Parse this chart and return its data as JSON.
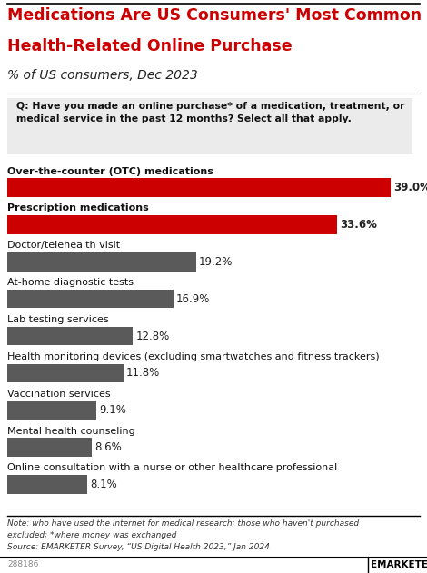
{
  "title_line1": "Medications Are US Consumers' Most Common",
  "title_line2": "Health-Related Online Purchase",
  "subtitle": "% of US consumers, Dec 2023",
  "question": "Q: Have you made an online purchase* of a medication, treatment, or\nmedical service in the past 12 months? Select all that apply.",
  "categories": [
    "Over-the-counter (OTC) medications",
    "Prescription medications",
    "Doctor/telehealth visit",
    "At-home diagnostic tests",
    "Lab testing services",
    "Health monitoring devices (excluding smartwatches and fitness trackers)",
    "Vaccination services",
    "Mental health counseling",
    "Online consultation with a nurse or other healthcare professional"
  ],
  "values": [
    39.0,
    33.6,
    19.2,
    16.9,
    12.8,
    11.8,
    9.1,
    8.6,
    8.1
  ],
  "bar_colors": [
    "#cc0000",
    "#cc0000",
    "#5a5a5a",
    "#5a5a5a",
    "#5a5a5a",
    "#5a5a5a",
    "#5a5a5a",
    "#5a5a5a",
    "#5a5a5a"
  ],
  "footnote_line1": "Note: who have used the internet for medical research; those who haven't purchased",
  "footnote_line2": "excluded; *where money was exchanged",
  "footnote_line3": "Source: EMARKETER Survey, “US Digital Health 2023,” Jan 2024",
  "id_text": "288186",
  "background_color": "#ffffff",
  "question_bg_color": "#ebebeb",
  "title_color": "#cc0000",
  "label_fontsize": 8.0,
  "value_fontsize": 8.5,
  "xlim": [
    0,
    42
  ],
  "top_line_color": "#000000",
  "sep_line_color": "#aaaaaa",
  "footnote_line_color": "#000000"
}
